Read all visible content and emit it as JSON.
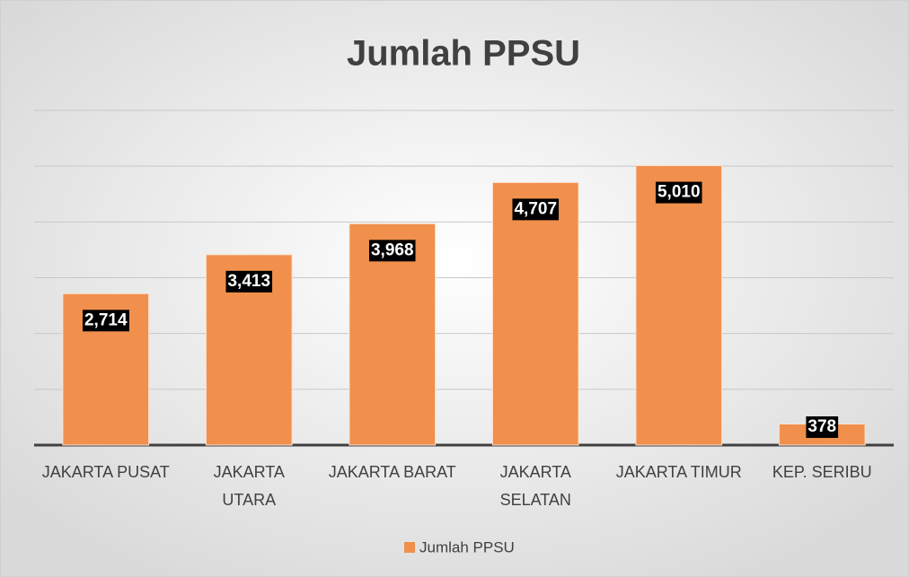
{
  "chart_data": {
    "type": "bar",
    "title": "Jumlah PPSU",
    "categories": [
      "JAKARTA PUSAT",
      "JAKARTA UTARA",
      "JAKARTA BARAT",
      "JAKARTA SELATAN",
      "JAKARTA TIMUR",
      "KEP. SERIBU"
    ],
    "series": [
      {
        "name": "Jumlah PPSU",
        "color": "#f0904c",
        "values": [
          2714,
          3413,
          3968,
          4707,
          5010,
          378
        ],
        "value_labels": [
          "2,714",
          "3,413",
          "3,968",
          "4,707",
          "5,010",
          "378"
        ]
      }
    ],
    "ylim": [
      0,
      6000
    ],
    "yticks": [
      0,
      1000,
      2000,
      3000,
      4000,
      5000,
      6000
    ],
    "grid": true,
    "legend": "bottom"
  }
}
